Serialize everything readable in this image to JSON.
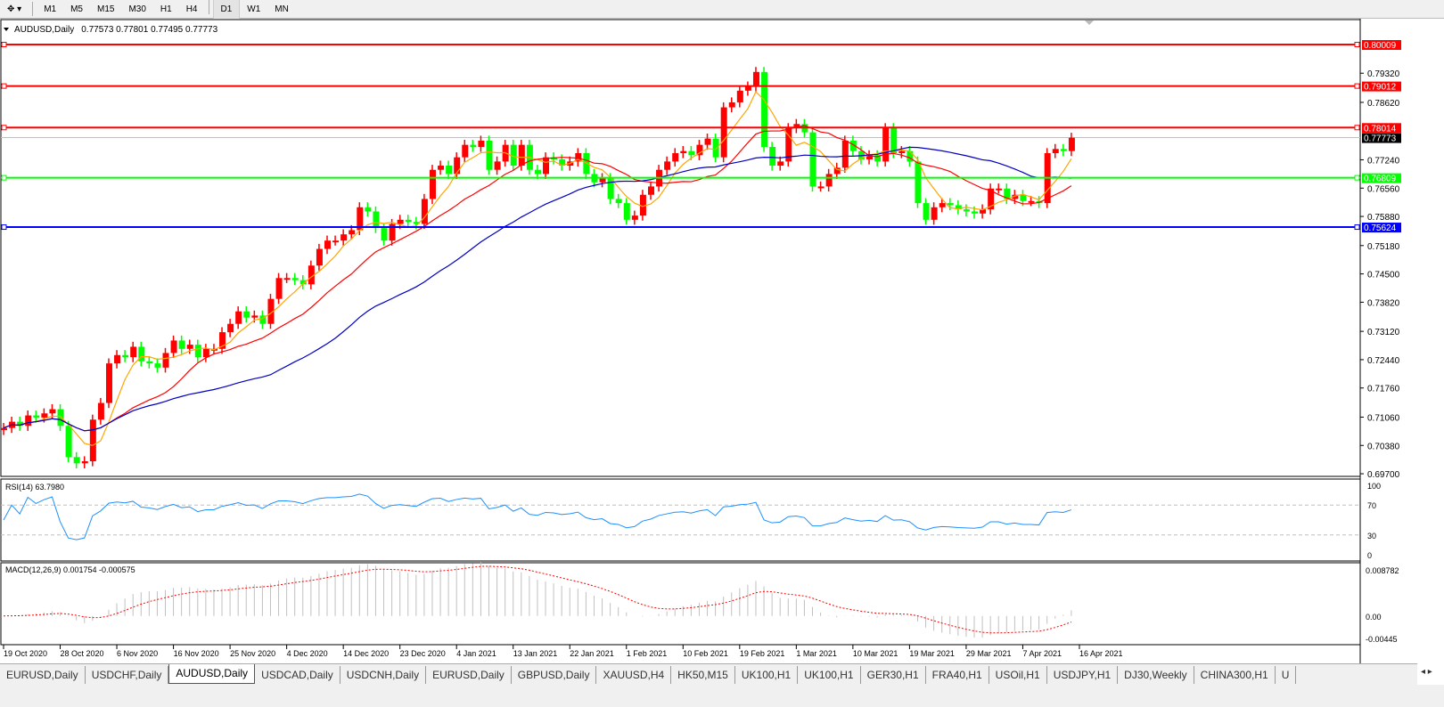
{
  "toolbar": {
    "timeframes": [
      "M1",
      "M5",
      "M15",
      "M30",
      "H1",
      "H4",
      "D1",
      "W1",
      "MN"
    ],
    "active": "D1"
  },
  "header": {
    "symbol": "AUDUSD,Daily",
    "ohlc": "0.77573 0.77801 0.77495 0.77773"
  },
  "colors": {
    "bull": "#ff0000",
    "bear": "#00ff00",
    "ma_fast": "#ffa500",
    "ma_mid": "#ff0000",
    "ma_slow": "#0000c0",
    "rsi": "#1e90ff",
    "macd_signal": "#ff0000",
    "macd_hist": "#c0c0c0"
  },
  "chart_data": {
    "type": "candlestick",
    "price_ticks": [
      "0.79320",
      "0.78620",
      "0.77240",
      "0.76560",
      "0.75880",
      "0.75180",
      "0.74500",
      "0.73820",
      "0.73120",
      "0.72440",
      "0.71760",
      "0.71060",
      "0.70380",
      "0.69700"
    ],
    "ylim": [
      0.697,
      0.80009
    ],
    "levels": [
      {
        "price": 0.80009,
        "label": "0.80009",
        "color": "#ff0000"
      },
      {
        "price": 0.79012,
        "label": "0.79012",
        "color": "#ff0000"
      },
      {
        "price": 0.78014,
        "label": "0.78014",
        "color": "#ff0000"
      },
      {
        "price": 0.76809,
        "label": "0.76809",
        "color": "#00ff00"
      },
      {
        "price": 0.75624,
        "label": "0.75624",
        "color": "#0000ff"
      }
    ],
    "current_price": {
      "price": 0.77773,
      "label": "0.77773"
    },
    "date_labels": [
      "19 Oct 2020",
      "28 Oct 2020",
      "6 Nov 2020",
      "16 Nov 2020",
      "25 Nov 2020",
      "4 Dec 2020",
      "14 Dec 2020",
      "23 Dec 2020",
      "4 Jan 2021",
      "13 Jan 2021",
      "22 Jan 2021",
      "1 Feb 2021",
      "10 Feb 2021",
      "19 Feb 2021",
      "1 Mar 2021",
      "10 Mar 2021",
      "19 Mar 2021",
      "29 Mar 2021",
      "7 Apr 2021",
      "16 Apr 2021"
    ],
    "closes": [
      0.708,
      0.7095,
      0.7085,
      0.711,
      0.7105,
      0.7115,
      0.7125,
      0.7085,
      0.701,
      0.6995,
      0.7,
      0.71,
      0.714,
      0.7235,
      0.7255,
      0.725,
      0.7275,
      0.724,
      0.7235,
      0.7225,
      0.726,
      0.729,
      0.727,
      0.728,
      0.725,
      0.727,
      0.727,
      0.731,
      0.733,
      0.736,
      0.7345,
      0.735,
      0.733,
      0.739,
      0.744,
      0.744,
      0.7435,
      0.7425,
      0.747,
      0.751,
      0.753,
      0.753,
      0.7545,
      0.7555,
      0.761,
      0.76,
      0.756,
      0.753,
      0.757,
      0.758,
      0.7575,
      0.757,
      0.763,
      0.77,
      0.771,
      0.769,
      0.773,
      0.776,
      0.7755,
      0.777,
      0.77,
      0.772,
      0.776,
      0.771,
      0.776,
      0.77,
      0.769,
      0.773,
      0.7725,
      0.771,
      0.772,
      0.774,
      0.769,
      0.767,
      0.768,
      0.763,
      0.762,
      0.758,
      0.759,
      0.764,
      0.766,
      0.77,
      0.772,
      0.774,
      0.7745,
      0.7735,
      0.776,
      0.7775,
      0.773,
      0.785,
      0.7862,
      0.789,
      0.79,
      0.7935,
      0.7755,
      0.771,
      0.772,
      0.78,
      0.781,
      0.779,
      0.766,
      0.766,
      0.769,
      0.7705,
      0.777,
      0.7745,
      0.7725,
      0.7735,
      0.772,
      0.78,
      0.774,
      0.7745,
      0.772,
      0.762,
      0.758,
      0.761,
      0.762,
      0.7615,
      0.7605,
      0.76,
      0.7595,
      0.7605,
      0.7655,
      0.7655,
      0.763,
      0.764,
      0.7625,
      0.7625,
      0.762,
      0.774,
      0.775,
      0.7745,
      0.7777
    ]
  },
  "rsi": {
    "label": "RSI(14) 63.7980",
    "ticks": [
      "100",
      "70",
      "30",
      "0"
    ]
  },
  "macd": {
    "label": "MACD(12,26,9) 0.001754 -0.000575",
    "ticks": [
      "0.008782",
      "0.00",
      "-0.00445"
    ],
    "range": [
      -0.00445,
      0.008782
    ]
  },
  "tabs": [
    "EURUSD,Daily",
    "USDCHF,Daily",
    "AUDUSD,Daily",
    "USDCAD,Daily",
    "USDCNH,Daily",
    "EURUSD,Daily",
    "GBPUSD,Daily",
    "XAUUSD,H4",
    "HK50,M15",
    "UK100,H1",
    "UK100,H1",
    "GER30,H1",
    "FRA40,H1",
    "USOil,H1",
    "USDJPY,H1",
    "DJ30,Weekly",
    "CHINA300,H1",
    "U"
  ],
  "active_tab": "AUDUSD,Daily"
}
